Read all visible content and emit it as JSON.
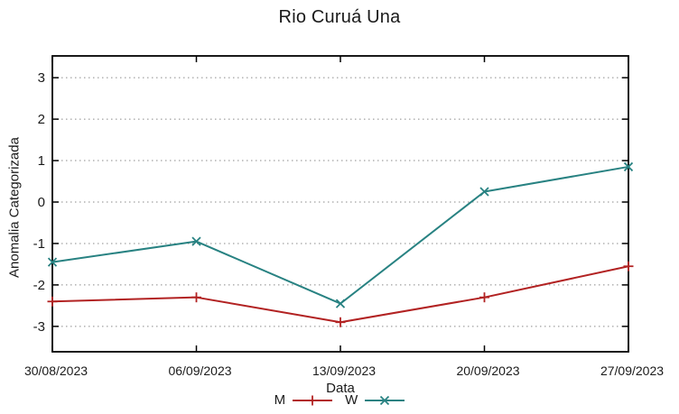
{
  "chart_data": {
    "type": "line",
    "title": "Rio Curuá Una",
    "xlabel": "Data",
    "ylabel": "Anomalia Categorizada",
    "categories": [
      "30/08/2023",
      "06/09/2023",
      "13/09/2023",
      "20/09/2023",
      "27/09/2023"
    ],
    "series": [
      {
        "name": "M",
        "color": "#b22222",
        "marker": "plus",
        "values": [
          -2.4,
          -2.3,
          -2.9,
          -2.3,
          -1.55
        ]
      },
      {
        "name": "W",
        "color": "#288282",
        "marker": "cross",
        "values": [
          -1.45,
          -0.95,
          -2.45,
          0.25,
          0.85
        ]
      }
    ],
    "y_ticks": [
      3,
      2,
      1,
      0,
      -1,
      -2,
      -3
    ],
    "ylim": [
      -3.6,
      3.55
    ],
    "grid": "horizontal-dotted",
    "legend_position": "bottom-center",
    "axis_color": "#000000",
    "grid_color": "#8a8a8a",
    "text_color": "#1a1a1a"
  }
}
